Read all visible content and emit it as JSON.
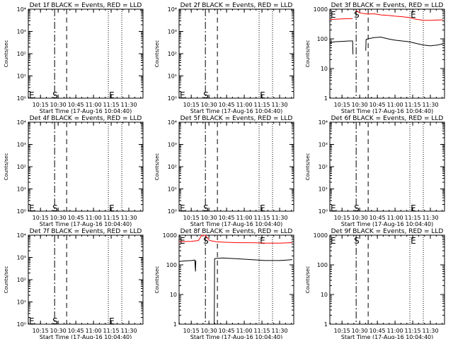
{
  "chart_data": [
    {
      "type": "line",
      "title": "Det 1f BLACK = Events, RED = LLD",
      "xlabel": "Start Time (17-Aug-16 10:04:40)",
      "ylabel": "Counts/sec",
      "yscale": "log",
      "ylim": [
        1,
        10000
      ],
      "ytick_labels": [
        "10⁰",
        "10¹",
        "10²",
        "10³",
        "10⁴"
      ],
      "xlim": [
        10.0778,
        11.7
      ],
      "xtick_labels": [
        "10:15",
        "10:30",
        "10:45",
        "11:00",
        "11:15",
        "11:30"
      ],
      "markers": [
        {
          "label": "E",
          "x": 10.078
        },
        {
          "label": "S",
          "x": 10.41
        },
        {
          "label": "E",
          "x": 11.21
        }
      ],
      "series": []
    },
    {
      "type": "line",
      "title": "Det 2f BLACK = Events, RED = LLD",
      "xlabel": "Start Time (17-Aug-16 10:04:40)",
      "ylabel": "Counts/sec",
      "yscale": "log",
      "ylim": [
        1,
        10000
      ],
      "ytick_labels": [
        "10⁰",
        "10¹",
        "10²",
        "10³",
        "10⁴"
      ],
      "xlim": [
        10.0778,
        11.7
      ],
      "xtick_labels": [
        "10:15",
        "10:30",
        "10:45",
        "11:00",
        "11:15",
        "11:30"
      ],
      "markers": [
        {
          "label": "E",
          "x": 10.078
        },
        {
          "label": "S",
          "x": 10.41
        },
        {
          "label": "E",
          "x": 11.21
        }
      ],
      "series": []
    },
    {
      "type": "line",
      "title": "Det 3f BLACK = Events, RED = LLD",
      "xlabel": "Start Time (17-Aug-16 10:04:40)",
      "ylabel": "Counts/sec",
      "yscale": "log",
      "ylim": [
        1,
        1000
      ],
      "ytick_labels": [
        "1",
        "10",
        "100",
        "1000"
      ],
      "xlim": [
        10.0778,
        11.7
      ],
      "xtick_labels": [
        "10:15",
        "10:30",
        "10:45",
        "11:00",
        "11:15",
        "11:30"
      ],
      "markers": [
        {
          "label": "E",
          "x": 10.078
        },
        {
          "label": "S",
          "x": 10.41
        },
        {
          "label": "E",
          "x": 11.21
        }
      ],
      "series": [
        {
          "color": "#ff0000",
          "x": [
            10.08,
            10.15,
            10.25,
            10.35,
            10.4,
            10.41,
            10.45,
            10.5,
            10.58,
            10.62,
            10.7,
            10.8,
            10.9,
            11.0,
            11.1,
            11.2,
            11.3,
            11.4,
            11.5,
            11.6,
            11.68
          ],
          "y": [
            450,
            460,
            470,
            480,
            480,
            null,
            900,
            750,
            700,
            680,
            700,
            640,
            620,
            580,
            560,
            520,
            460,
            420,
            420,
            430,
            440
          ]
        },
        {
          "color": "#000000",
          "x": [
            10.08,
            10.15,
            10.25,
            10.35,
            10.4,
            10.405,
            10.41,
            10.58,
            10.585,
            10.59,
            10.62,
            10.7,
            10.8,
            10.9,
            11.0,
            11.1,
            11.2,
            11.3,
            11.4,
            11.5,
            11.6,
            11.68
          ],
          "y": [
            75,
            80,
            82,
            85,
            85,
            30,
            null,
            null,
            40,
            95,
            100,
            110,
            115,
            100,
            90,
            85,
            80,
            70,
            62,
            58,
            62,
            68
          ]
        }
      ]
    },
    {
      "type": "line",
      "title": "Det 4f BLACK = Events, RED = LLD",
      "xlabel": "Start Time (17-Aug-16 10:04:40)",
      "ylabel": "Counts/sec",
      "yscale": "log",
      "ylim": [
        1,
        10000
      ],
      "ytick_labels": [
        "10⁰",
        "10¹",
        "10²",
        "10³",
        "10⁴"
      ],
      "xlim": [
        10.0778,
        11.7
      ],
      "xtick_labels": [
        "10:15",
        "10:30",
        "10:45",
        "11:00",
        "11:15",
        "11:30"
      ],
      "markers": [
        {
          "label": "E",
          "x": 10.078
        },
        {
          "label": "S",
          "x": 10.41
        },
        {
          "label": "E",
          "x": 11.21
        }
      ],
      "series": []
    },
    {
      "type": "line",
      "title": "Det 5f BLACK = Events, RED = LLD",
      "xlabel": "Start Time (17-Aug-16 10:04:40)",
      "ylabel": "Counts/sec",
      "yscale": "log",
      "ylim": [
        1,
        10000
      ],
      "ytick_labels": [
        "10⁰",
        "10¹",
        "10²",
        "10³",
        "10⁴"
      ],
      "xlim": [
        10.0778,
        11.7
      ],
      "xtick_labels": [
        "10:15",
        "10:30",
        "10:45",
        "11:00",
        "11:15",
        "11:30"
      ],
      "markers": [
        {
          "label": "E",
          "x": 10.078
        },
        {
          "label": "S",
          "x": 10.41
        },
        {
          "label": "E",
          "x": 11.21
        }
      ],
      "series": []
    },
    {
      "type": "line",
      "title": "Det 6f BLACK = Events, RED = LLD",
      "xlabel": "Start Time (17-Aug-16 10:04:40)",
      "ylabel": "Counts/sec",
      "yscale": "log",
      "ylim": [
        1,
        10000
      ],
      "ytick_labels": [
        "10⁰",
        "10¹",
        "10²",
        "10³",
        "10⁴"
      ],
      "xlim": [
        10.0778,
        11.7
      ],
      "xtick_labels": [
        "10:15",
        "10:30",
        "10:45",
        "11:00",
        "11:15",
        "11:30"
      ],
      "markers": [
        {
          "label": "E",
          "x": 10.078
        },
        {
          "label": "S",
          "x": 10.41
        },
        {
          "label": "E",
          "x": 11.21
        }
      ],
      "series": []
    },
    {
      "type": "line",
      "title": "Det 7f BLACK = Events, RED = LLD",
      "xlabel": "Start Time (17-Aug-16 10:04:40)",
      "ylabel": "Counts/sec",
      "yscale": "log",
      "ylim": [
        1,
        10000
      ],
      "ytick_labels": [
        "10⁰",
        "10¹",
        "10²",
        "10³",
        "10⁴"
      ],
      "xlim": [
        10.0778,
        11.7
      ],
      "xtick_labels": [
        "10:15",
        "10:30",
        "10:45",
        "11:00",
        "11:15",
        "11:30"
      ],
      "markers": [
        {
          "label": "E",
          "x": 10.078
        },
        {
          "label": "S",
          "x": 10.41
        },
        {
          "label": "E",
          "x": 11.21
        }
      ],
      "series": []
    },
    {
      "type": "line",
      "title": "Det 8f BLACK = Events, RED = LLD",
      "xlabel": "Start Time (17-Aug-16 10:04:40)",
      "ylabel": "Counts/sec",
      "yscale": "log",
      "ylim": [
        1,
        1000
      ],
      "ytick_labels": [
        "1",
        "10",
        "100",
        "1000"
      ],
      "xlim": [
        10.0778,
        11.7
      ],
      "xtick_labels": [
        "10:15",
        "10:30",
        "10:45",
        "11:00",
        "11:15",
        "11:30"
      ],
      "markers": [
        {
          "label": "E",
          "x": 10.078
        },
        {
          "label": "S",
          "x": 10.41
        },
        {
          "label": "E",
          "x": 11.21
        }
      ],
      "series": [
        {
          "color": "#ff0000",
          "x": [
            10.08,
            10.15,
            10.25,
            10.3,
            10.35,
            10.4,
            10.45,
            10.5,
            10.55,
            10.6,
            10.7,
            10.8,
            10.9,
            11.0,
            11.1,
            11.2,
            11.3,
            11.4,
            11.5,
            11.6,
            11.68
          ],
          "y": [
            600,
            610,
            620,
            640,
            660,
            1100,
            1100,
            680,
            630,
            600,
            580,
            570,
            560,
            560,
            560,
            550,
            540,
            540,
            540,
            550,
            560
          ]
        },
        {
          "color": "#000000",
          "x": [
            10.08,
            10.15,
            10.25,
            10.3,
            10.31,
            10.315,
            10.32,
            10.57,
            10.575,
            10.58,
            10.6,
            10.7,
            10.8,
            10.9,
            11.0,
            11.1,
            11.2,
            11.3,
            11.4,
            11.5,
            11.6,
            11.68
          ],
          "y": [
            130,
            135,
            140,
            145,
            60,
            140,
            null,
            null,
            1,
            160,
            165,
            170,
            165,
            160,
            155,
            150,
            145,
            140,
            140,
            140,
            145,
            150
          ]
        }
      ]
    },
    {
      "type": "line",
      "title": "Det 9f BLACK = Events, RED = LLD",
      "xlabel": "Start Time (17-Aug-16 10:04:40)",
      "ylabel": "Counts/sec",
      "yscale": "log",
      "ylim": [
        1,
        1000
      ],
      "ytick_labels": [
        "1",
        "10",
        "100",
        "1000"
      ],
      "xlim": [
        10.0778,
        11.7
      ],
      "xtick_labels": [
        "10:15",
        "10:30",
        "10:45",
        "11:00",
        "11:15",
        "11:30"
      ],
      "markers": [
        {
          "label": "E",
          "x": 10.078
        },
        {
          "label": "S",
          "x": 10.41
        },
        {
          "label": "E",
          "x": 11.21
        }
      ],
      "series": []
    }
  ]
}
